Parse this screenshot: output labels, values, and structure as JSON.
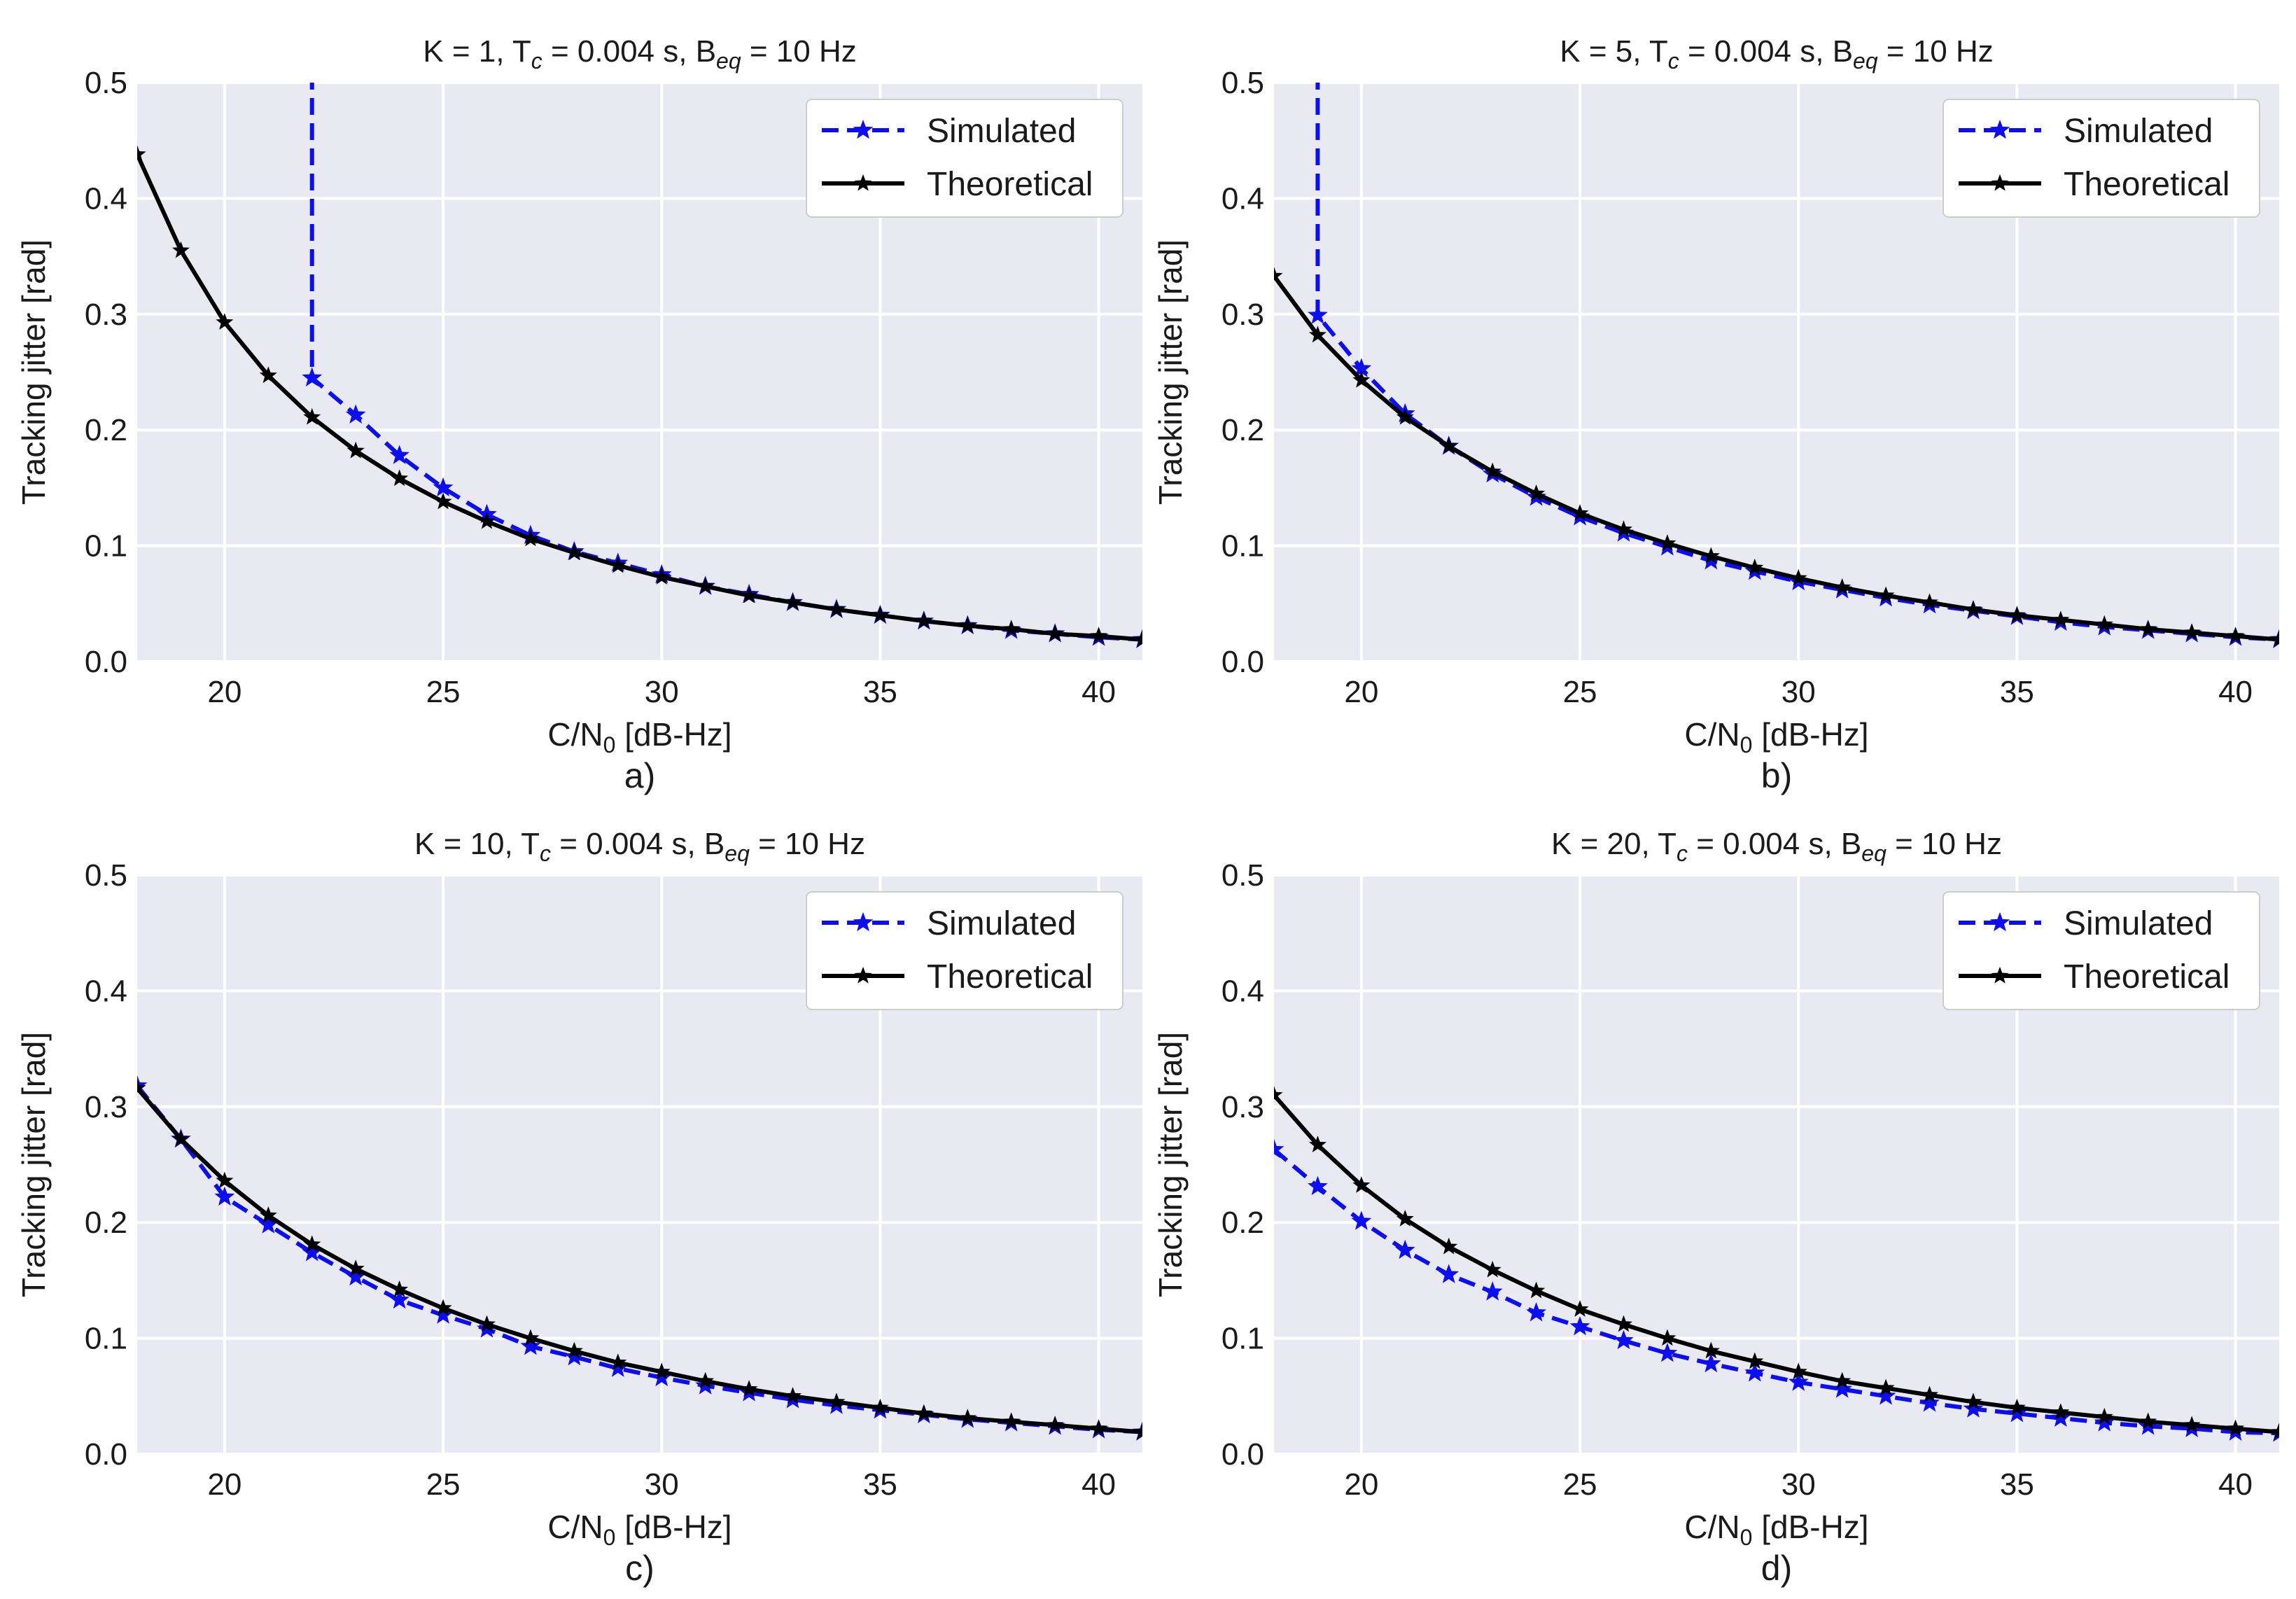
{
  "colors": {
    "plot_background": "#e9e9f1",
    "grid": "#ffffff",
    "simulated": "#0d0df2",
    "theoretical": "#000000"
  },
  "chart_data": [
    {
      "type": "line",
      "panel_label": "a)",
      "title": {
        "prefix": "K = 1, T",
        "t_sub": "c",
        "mid": " = 0.004 s, B",
        "b_sub": "eq",
        "suffix": " = 10 Hz"
      },
      "xlabel": {
        "main": "C/N",
        "sub": "0",
        "rest": " [dB-Hz]"
      },
      "ylabel": "Tracking jitter [rad]",
      "xlim": [
        18,
        41
      ],
      "ylim": [
        0,
        0.5
      ],
      "xticks": [
        "20",
        "25",
        "30",
        "35",
        "40"
      ],
      "yticks": [
        "0.0",
        "0.1",
        "0.2",
        "0.3",
        "0.4",
        "0.5"
      ],
      "legend": {
        "position": "top-right",
        "entries": [
          "Simulated",
          "Theoretical"
        ]
      },
      "series": [
        {
          "name": "Simulated",
          "style": "dashed",
          "diverges_at": 22,
          "x": [
            22,
            23,
            24,
            25,
            26,
            27,
            28,
            29,
            30,
            31,
            32,
            33,
            34,
            35,
            36,
            37,
            38,
            39,
            40,
            41
          ],
          "y": [
            0.245,
            0.213,
            0.178,
            0.15,
            0.127,
            0.109,
            0.095,
            0.085,
            0.075,
            0.065,
            0.058,
            0.051,
            0.045,
            0.04,
            0.035,
            0.031,
            0.027,
            0.024,
            0.021,
            0.019
          ]
        },
        {
          "name": "Theoretical",
          "style": "solid",
          "x": [
            18,
            19,
            20,
            21,
            22,
            23,
            24,
            25,
            26,
            27,
            28,
            29,
            30,
            31,
            32,
            33,
            34,
            35,
            36,
            37,
            38,
            39,
            40,
            41
          ],
          "y": [
            0.438,
            0.355,
            0.293,
            0.247,
            0.211,
            0.182,
            0.158,
            0.138,
            0.121,
            0.106,
            0.094,
            0.083,
            0.073,
            0.065,
            0.057,
            0.051,
            0.045,
            0.04,
            0.035,
            0.031,
            0.028,
            0.024,
            0.022,
            0.019
          ]
        }
      ]
    },
    {
      "type": "line",
      "panel_label": "b)",
      "title": {
        "prefix": "K = 5, T",
        "t_sub": "c",
        "mid": " = 0.004 s, B",
        "b_sub": "eq",
        "suffix": " = 10 Hz"
      },
      "xlabel": {
        "main": "C/N",
        "sub": "0",
        "rest": " [dB-Hz]"
      },
      "ylabel": "Tracking jitter [rad]",
      "xlim": [
        18,
        41
      ],
      "ylim": [
        0,
        0.5
      ],
      "xticks": [
        "20",
        "25",
        "30",
        "35",
        "40"
      ],
      "yticks": [
        "0.0",
        "0.1",
        "0.2",
        "0.3",
        "0.4",
        "0.5"
      ],
      "legend": {
        "position": "top-right",
        "entries": [
          "Simulated",
          "Theoretical"
        ]
      },
      "series": [
        {
          "name": "Simulated",
          "style": "dashed",
          "diverges_at": 19,
          "x": [
            19,
            20,
            21,
            22,
            23,
            24,
            25,
            26,
            27,
            28,
            29,
            30,
            31,
            32,
            33,
            34,
            35,
            36,
            37,
            38,
            39,
            40,
            41
          ],
          "y": [
            0.299,
            0.253,
            0.214,
            0.186,
            0.162,
            0.142,
            0.125,
            0.111,
            0.099,
            0.087,
            0.078,
            0.069,
            0.062,
            0.055,
            0.049,
            0.044,
            0.039,
            0.034,
            0.03,
            0.027,
            0.024,
            0.021,
            0.019
          ]
        },
        {
          "name": "Theoretical",
          "style": "solid",
          "x": [
            18,
            19,
            20,
            21,
            22,
            23,
            24,
            25,
            26,
            27,
            28,
            29,
            30,
            31,
            32,
            33,
            34,
            35,
            36,
            37,
            38,
            39,
            40,
            41
          ],
          "y": [
            0.333,
            0.282,
            0.243,
            0.211,
            0.186,
            0.164,
            0.145,
            0.128,
            0.114,
            0.102,
            0.091,
            0.081,
            0.072,
            0.064,
            0.057,
            0.051,
            0.045,
            0.04,
            0.036,
            0.032,
            0.028,
            0.025,
            0.022,
            0.019
          ]
        }
      ]
    },
    {
      "type": "line",
      "panel_label": "c)",
      "title": {
        "prefix": "K = 10, T",
        "t_sub": "c",
        "mid": " = 0.004 s, B",
        "b_sub": "eq",
        "suffix": " = 10 Hz"
      },
      "xlabel": {
        "main": "C/N",
        "sub": "0",
        "rest": " [dB-Hz]"
      },
      "ylabel": "Tracking jitter [rad]",
      "xlim": [
        18,
        41
      ],
      "ylim": [
        0,
        0.5
      ],
      "xticks": [
        "20",
        "25",
        "30",
        "35",
        "40"
      ],
      "yticks": [
        "0.0",
        "0.1",
        "0.2",
        "0.3",
        "0.4",
        "0.5"
      ],
      "legend": {
        "position": "top-right",
        "entries": [
          "Simulated",
          "Theoretical"
        ]
      },
      "series": [
        {
          "name": "Simulated",
          "style": "dashed",
          "x": [
            18,
            19,
            20,
            21,
            22,
            23,
            24,
            25,
            26,
            27,
            28,
            29,
            30,
            31,
            32,
            33,
            34,
            35,
            36,
            37,
            38,
            39,
            40,
            41
          ],
          "y": [
            0.318,
            0.272,
            0.222,
            0.198,
            0.174,
            0.153,
            0.133,
            0.12,
            0.108,
            0.093,
            0.084,
            0.074,
            0.066,
            0.059,
            0.053,
            0.047,
            0.042,
            0.038,
            0.034,
            0.03,
            0.027,
            0.024,
            0.021,
            0.019
          ]
        },
        {
          "name": "Theoretical",
          "style": "solid",
          "x": [
            18,
            19,
            20,
            21,
            22,
            23,
            24,
            25,
            26,
            27,
            28,
            29,
            30,
            31,
            32,
            33,
            34,
            35,
            36,
            37,
            38,
            39,
            40,
            41
          ],
          "y": [
            0.316,
            0.272,
            0.236,
            0.206,
            0.181,
            0.16,
            0.142,
            0.126,
            0.112,
            0.1,
            0.089,
            0.079,
            0.071,
            0.063,
            0.056,
            0.05,
            0.045,
            0.04,
            0.035,
            0.031,
            0.028,
            0.025,
            0.022,
            0.019
          ]
        }
      ]
    },
    {
      "type": "line",
      "panel_label": "d)",
      "title": {
        "prefix": "K = 20, T",
        "t_sub": "c",
        "mid": " = 0.004 s, B",
        "b_sub": "eq",
        "suffix": " = 10 Hz"
      },
      "xlabel": {
        "main": "C/N",
        "sub": "0",
        "rest": " [dB-Hz]"
      },
      "ylabel": "Tracking jitter [rad]",
      "xlim": [
        18,
        41
      ],
      "ylim": [
        0,
        0.5
      ],
      "xticks": [
        "20",
        "25",
        "30",
        "35",
        "40"
      ],
      "yticks": [
        "0.0",
        "0.1",
        "0.2",
        "0.3",
        "0.4",
        "0.5"
      ],
      "legend": {
        "position": "top-right",
        "entries": [
          "Simulated",
          "Theoretical"
        ]
      },
      "series": [
        {
          "name": "Simulated",
          "style": "dashed",
          "x": [
            18,
            19,
            20,
            21,
            22,
            23,
            24,
            25,
            26,
            27,
            28,
            29,
            30,
            31,
            32,
            33,
            34,
            35,
            36,
            37,
            38,
            39,
            40,
            41
          ],
          "y": [
            0.263,
            0.231,
            0.201,
            0.176,
            0.155,
            0.14,
            0.122,
            0.11,
            0.098,
            0.087,
            0.078,
            0.07,
            0.062,
            0.056,
            0.05,
            0.044,
            0.039,
            0.035,
            0.031,
            0.027,
            0.024,
            0.022,
            0.019,
            0.018
          ]
        },
        {
          "name": "Theoretical",
          "style": "solid",
          "x": [
            18,
            19,
            20,
            21,
            22,
            23,
            24,
            25,
            26,
            27,
            28,
            29,
            30,
            31,
            32,
            33,
            34,
            35,
            36,
            37,
            38,
            39,
            40,
            41
          ],
          "y": [
            0.31,
            0.267,
            0.232,
            0.203,
            0.179,
            0.159,
            0.141,
            0.125,
            0.112,
            0.1,
            0.089,
            0.08,
            0.071,
            0.063,
            0.057,
            0.051,
            0.045,
            0.04,
            0.036,
            0.032,
            0.028,
            0.025,
            0.022,
            0.019
          ]
        }
      ]
    }
  ]
}
